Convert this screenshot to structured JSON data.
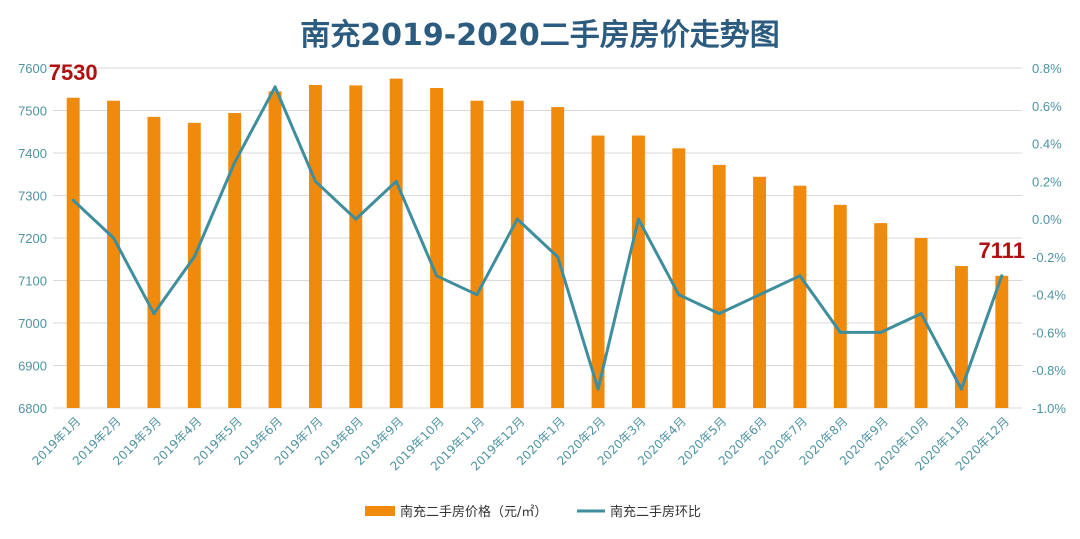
{
  "chart_data": {
    "type": "bar",
    "title": "南充2019-2020二手房房价走势图",
    "categories": [
      "2019年1月",
      "2019年2月",
      "2019年3月",
      "2019年4月",
      "2019年5月",
      "2019年6月",
      "2019年7月",
      "2019年8月",
      "2019年9月",
      "2019年10月",
      "2019年11月",
      "2019年12月",
      "2020年1月",
      "2020年2月",
      "2020年3月",
      "2020年4月",
      "2020年5月",
      "2020年6月",
      "2020年7月",
      "2020年8月",
      "2020年9月",
      "2020年10月",
      "2020年11月",
      "2020年12月"
    ],
    "series": [
      {
        "name": "南充二手房价格（元/㎡）",
        "type": "bar",
        "axis": "left",
        "color": "#f08a0c",
        "values": [
          7530,
          7523,
          7485,
          7471,
          7494,
          7545,
          7560,
          7559,
          7575,
          7553,
          7523,
          7523,
          7508,
          7441,
          7441,
          7411,
          7372,
          7344,
          7323,
          7278,
          7235,
          7200,
          7134,
          7111
        ]
      },
      {
        "name": "南充二手房环比",
        "type": "line",
        "axis": "right",
        "color": "#3e8e9e",
        "values": [
          0.1,
          -0.1,
          -0.5,
          -0.2,
          0.3,
          0.7,
          0.2,
          0.0,
          0.2,
          -0.3,
          -0.4,
          0.0,
          -0.2,
          -0.9,
          0.0,
          -0.4,
          -0.5,
          -0.4,
          -0.3,
          -0.6,
          -0.6,
          -0.5,
          -0.9,
          -0.3
        ]
      }
    ],
    "y_left": {
      "range": [
        6800,
        7600
      ],
      "ticks": [
        "6800",
        "6900",
        "7000",
        "7100",
        "7200",
        "7300",
        "7400",
        "7500",
        "7600"
      ]
    },
    "y_right": {
      "range": [
        -1.0,
        0.8
      ],
      "unit": "%",
      "ticks": [
        "-1.0%",
        "-0.8%",
        "-0.6%",
        "-0.4%",
        "-0.2%",
        "0.0%",
        "0.2%",
        "0.4%",
        "0.6%",
        "0.8%"
      ]
    },
    "annotations": [
      {
        "label": "7530",
        "index": 0
      },
      {
        "label": "7111",
        "index": 23
      }
    ],
    "legend": {
      "placement": "bottom"
    },
    "grid": true
  },
  "colors": {
    "title": "#2b5b7f",
    "axis_text": "#4f93a0",
    "callout": "#b01010",
    "grid": "#d9d9d9"
  }
}
